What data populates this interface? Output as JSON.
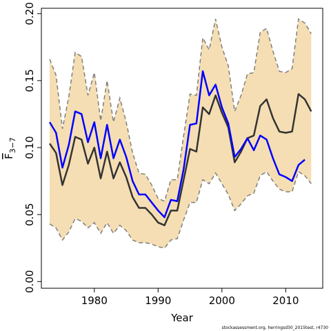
{
  "chart_data": {
    "type": "line",
    "xlabel": "Year",
    "ylabel": "F",
    "ylabel_sub": "3−7",
    "footnote": "stockassessment.org, herringsd30_2015test, r4730",
    "x": [
      1973,
      1974,
      1975,
      1976,
      1977,
      1978,
      1979,
      1980,
      1981,
      1982,
      1983,
      1984,
      1985,
      1986,
      1987,
      1988,
      1989,
      1990,
      1991,
      1992,
      1993,
      1994,
      1995,
      1996,
      1997,
      1998,
      1999,
      2000,
      2001,
      2002,
      2003,
      2004,
      2005,
      2006,
      2007,
      2008,
      2009,
      2010,
      2011,
      2012,
      2013,
      2014
    ],
    "band": {
      "color": "#f5deb3",
      "line_color": "#7f7f7f",
      "upper": [
        0.166,
        0.154,
        0.114,
        0.138,
        0.171,
        0.168,
        0.139,
        0.156,
        0.12,
        0.15,
        0.119,
        0.137,
        0.119,
        0.096,
        0.081,
        0.08,
        0.072,
        0.062,
        0.06,
        0.076,
        0.076,
        0.109,
        0.14,
        0.139,
        0.182,
        0.173,
        0.196,
        0.175,
        0.161,
        0.127,
        0.139,
        0.155,
        0.156,
        0.186,
        0.189,
        0.172,
        0.157,
        0.156,
        0.159,
        0.196,
        0.193,
        0.185
      ],
      "lower": [
        0.043,
        0.04,
        0.031,
        0.037,
        0.047,
        0.045,
        0.04,
        0.044,
        0.036,
        0.044,
        0.036,
        0.042,
        0.038,
        0.031,
        0.029,
        0.029,
        0.028,
        0.026,
        0.025,
        0.031,
        0.032,
        0.046,
        0.059,
        0.059,
        0.076,
        0.073,
        0.081,
        0.073,
        0.065,
        0.053,
        0.058,
        0.064,
        0.066,
        0.079,
        0.082,
        0.075,
        0.069,
        0.067,
        0.067,
        0.082,
        0.079,
        0.073
      ]
    },
    "series": [
      {
        "color": "#333333",
        "values": [
          0.103,
          0.096,
          0.072,
          0.087,
          0.108,
          0.106,
          0.088,
          0.1,
          0.077,
          0.097,
          0.077,
          0.089,
          0.078,
          0.063,
          0.055,
          0.055,
          0.05,
          0.044,
          0.042,
          0.053,
          0.053,
          0.076,
          0.099,
          0.097,
          0.13,
          0.125,
          0.139,
          0.126,
          0.115,
          0.089,
          0.097,
          0.107,
          0.109,
          0.131,
          0.136,
          0.122,
          0.112,
          0.111,
          0.112,
          0.14,
          0.136,
          0.127
        ]
      },
      {
        "color": "#0000ff",
        "values": [
          0.119,
          0.111,
          0.085,
          0.102,
          0.127,
          0.125,
          0.104,
          0.119,
          0.092,
          0.117,
          0.092,
          0.106,
          0.093,
          0.075,
          0.065,
          0.065,
          0.059,
          0.053,
          0.048,
          0.061,
          0.06,
          0.084,
          0.117,
          0.118,
          0.157,
          0.139,
          0.147,
          0.13,
          0.118,
          0.093,
          0.099,
          0.107,
          0.098,
          0.109,
          0.106,
          0.092,
          0.08,
          0.078,
          0.075,
          0.087,
          0.091,
          null
        ]
      }
    ],
    "xlim": [
      1971.7,
      2015.8
    ],
    "ylim": [
      -0.005,
      0.204
    ],
    "xticks": [
      1980,
      1990,
      2000,
      2010
    ],
    "yticks": [
      {
        "value": 0,
        "label": "0.00"
      },
      {
        "value": 0.05,
        "label": "0.05"
      },
      {
        "value": 0.1,
        "label": "0.10"
      },
      {
        "value": 0.15,
        "label": "0.15"
      },
      {
        "value": 0.2,
        "label": "0.20"
      }
    ]
  }
}
